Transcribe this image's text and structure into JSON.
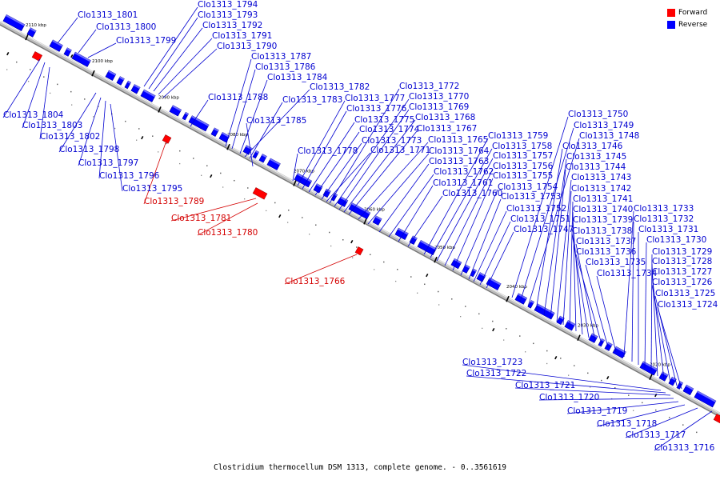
{
  "colors": {
    "forward": "#ff0000",
    "reverse": "#0000ff",
    "forward_label": "#d40000",
    "reverse_label": "#0000d0"
  },
  "legend": [
    {
      "label": "Forward",
      "color": "#ff0000"
    },
    {
      "label": "Reverse",
      "color": "#0000ff"
    }
  ],
  "caption": "Clostridium thermocellum DSM 1313, complete genome. - 0..3561619",
  "ticks": [
    "2110 kbp",
    "2100 kbp",
    "2090 kbp",
    "2080 kbp",
    "2070 kbp",
    "2060 kbp",
    "2050 kbp",
    "2040 kbp",
    "2030 kbp",
    "2020 kbp"
  ],
  "forward_labels": [
    "Clo1313_1789",
    "Clo1313_1781",
    "Clo1313_1780",
    "Clo1313_1766"
  ],
  "reverse_labels_above": [
    "Clo1313_1801",
    "Clo1313_1800",
    "Clo1313_1799",
    "Clo1313_1794",
    "Clo1313_1793",
    "Clo1313_1792",
    "Clo1313_1791",
    "Clo1313_1790",
    "Clo1313_1788",
    "Clo1313_1787",
    "Clo1313_1786",
    "Clo1313_1784",
    "Clo1313_1782",
    "Clo1313_1783",
    "Clo1313_1785",
    "Clo1313_1778",
    "Clo1313_1777",
    "Clo1313_1776",
    "Clo1313_1775",
    "Clo1313_1774",
    "Clo1313_1773",
    "Clo1313_1771",
    "Clo1313_1772",
    "Clo1313_1770",
    "Clo1313_1769",
    "Clo1313_1768",
    "Clo1313_1767",
    "Clo1313_1765",
    "Clo1313_1764",
    "Clo1313_1763",
    "Clo1313_1762",
    "Clo1313_1761",
    "Clo1313_1760",
    "Clo1313_1759",
    "Clo1313_1758",
    "Clo1313_1757",
    "Clo1313_1756",
    "Clo1313_1755",
    "Clo1313_1754",
    "Clo1313_1753",
    "Clo1313_1752",
    "Clo1313_1751",
    "Clo1313_1747",
    "Clo1313_1750",
    "Clo1313_1749",
    "Clo1313_1748",
    "Clo1313_1746",
    "Clo1313_1745",
    "Clo1313_1744",
    "Clo1313_1743",
    "Clo1313_1742",
    "Clo1313_1741",
    "Clo1313_1740",
    "Clo1313_1739",
    "Clo1313_1738",
    "Clo1313_1737",
    "Clo1313_1736",
    "Clo1313_1735",
    "Clo1313_1734",
    "Clo1313_1733",
    "Clo1313_1732",
    "Clo1313_1731",
    "Clo1313_1730",
    "Clo1313_1729",
    "Clo1313_1728",
    "Clo1313_1727",
    "Clo1313_1726",
    "Clo1313_1725",
    "Clo1313_1724"
  ],
  "reverse_labels_below": [
    "Clo1313_1804",
    "Clo1313_1803",
    "Clo1313_1802",
    "Clo1313_1798",
    "Clo1313_1797",
    "Clo1313_1796",
    "Clo1313_1795",
    "Clo1313_1723",
    "Clo1313_1722",
    "Clo1313_1721",
    "Clo1313_1720",
    "Clo1313_1719",
    "Clo1313_1718",
    "Clo1313_1717",
    "Clo1313_1716"
  ]
}
